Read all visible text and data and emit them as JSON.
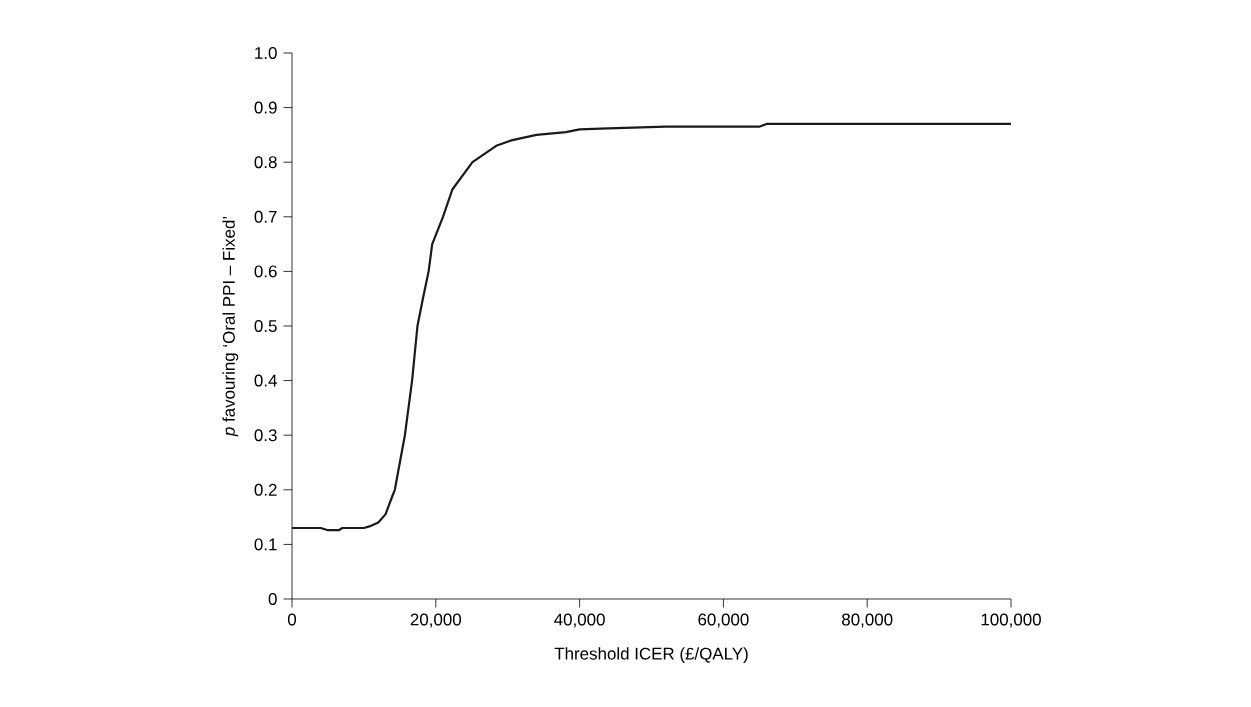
{
  "chart_data": {
    "type": "line",
    "xlabel": "Threshold ICER (£/QALY)",
    "ylabel": "*p* favouring ‘Oral PPI – Fixed’",
    "x": [
      0,
      4000,
      5000,
      6500,
      7000,
      10000,
      11000,
      12000,
      13000,
      14000,
      14300,
      15000,
      15700,
      16700,
      17450,
      18200,
      19000,
      19500,
      21000,
      22300,
      25100,
      28400,
      30500,
      34000,
      38100,
      40000,
      44000,
      52000,
      65000,
      66000,
      100000
    ],
    "series": [
      {
        "color": "#1a1a1a",
        "values": [
          0.13,
          0.13,
          0.126,
          0.126,
          0.13,
          0.13,
          0.134,
          0.14,
          0.155,
          0.19,
          0.2,
          0.25,
          0.3,
          0.4,
          0.5,
          0.55,
          0.6,
          0.65,
          0.7,
          0.75,
          0.8,
          0.83,
          0.84,
          0.85,
          0.855,
          0.86,
          0.862,
          0.865,
          0.865,
          0.87,
          0.87
        ]
      }
    ],
    "xlim": [
      0,
      100000
    ],
    "xticks": [
      0,
      {
        "value": 20000,
        "label": "20,000"
      },
      {
        "value": 40000,
        "label": "40,000"
      },
      {
        "value": 60000,
        "label": "60,000"
      },
      {
        "value": 80000,
        "label": "80,000"
      },
      {
        "value": 100000,
        "label": "100,000"
      }
    ],
    "ylim": [
      0,
      1.0
    ],
    "yticks": [
      0,
      0.1,
      0.2,
      0.3,
      0.4,
      0.5,
      0.6,
      0.7,
      0.8,
      0.9,
      {
        "value": 1.0,
        "label": "1.0"
      }
    ],
    "grid": false,
    "marker": "none",
    "line_style": "solid"
  }
}
